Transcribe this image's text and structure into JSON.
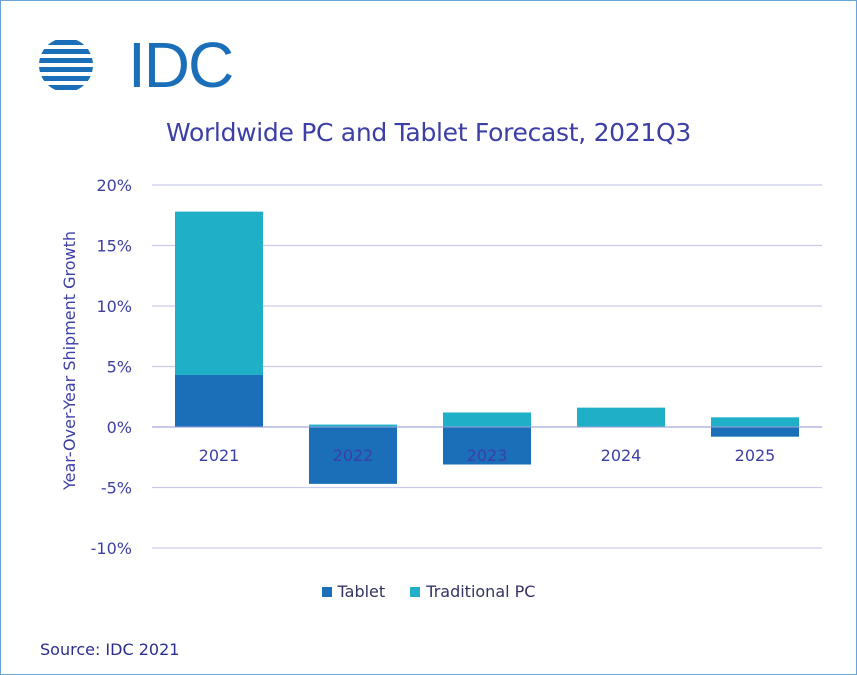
{
  "brand": {
    "logo_text": "IDC",
    "logo_color": "#1a6fb8"
  },
  "chart_data": {
    "type": "bar",
    "stacked": true,
    "title": "Worldwide PC and Tablet Forecast, 2021Q3",
    "ylabel": "Year-Over-Year  Shipment  Growth",
    "xlabel": "",
    "ylim": [
      -10,
      20
    ],
    "yticks": [
      20,
      15,
      10,
      5,
      0,
      -5,
      -10
    ],
    "ytick_labels": [
      "20%",
      "15%",
      "10%",
      "5%",
      "0%",
      "-5%",
      "-10%"
    ],
    "categories": [
      "2021",
      "2022",
      "2023",
      "2024",
      "2025"
    ],
    "series": [
      {
        "name": "Tablet",
        "color": "#1a6fb8",
        "values": [
          4.3,
          -4.7,
          -3.1,
          0.0,
          -0.8
        ]
      },
      {
        "name": "Traditional PC",
        "color": "#1fb0c8",
        "values": [
          13.5,
          0.2,
          1.2,
          1.6,
          0.8
        ]
      }
    ],
    "grid": true,
    "legend_position": "bottom",
    "source": "Source: IDC 2021"
  }
}
